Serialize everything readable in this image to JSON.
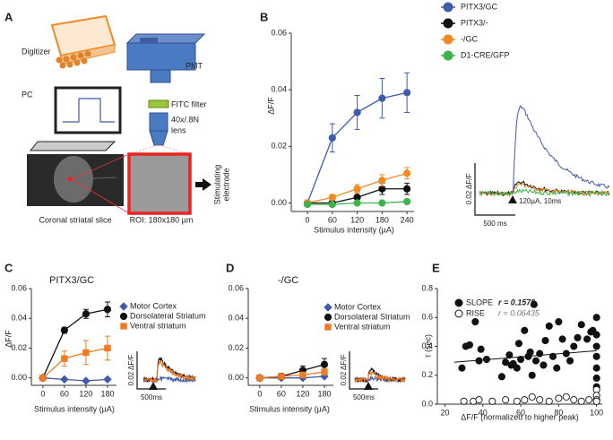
{
  "figure": {
    "panel_labels": [
      "A",
      "B",
      "C",
      "D",
      "E"
    ],
    "diagram": {
      "digitizer": "Digitizer",
      "pmt": "PMT",
      "pc": "PC",
      "filter": "FITC filter",
      "lens": [
        "40x/.8N",
        "lens"
      ],
      "electrode": [
        "Stimulating",
        "electrode"
      ],
      "slice": "Coronal striatal slice",
      "roi": "ROI: 180x180 µm"
    }
  },
  "chart_data": [
    {
      "type": "line",
      "x": [
        0,
        60,
        120,
        180,
        240
      ],
      "xlim": [
        -39,
        257
      ],
      "xticks": [
        0,
        60,
        120,
        180,
        240
      ],
      "ylim": [
        -0.003,
        0.06
      ],
      "yticks": [
        {
          "value": 0,
          "label": "0.00"
        },
        {
          "value": 0.02,
          "label": "0.02"
        },
        {
          "value": 0.04,
          "label": "0.04"
        },
        {
          "value": 0.06,
          "label": "0.06"
        }
      ],
      "xlabel": "Stimulus intensity (µA)",
      "ylabel": "ΔF/F",
      "scale_labels": [
        "0.02 ΔF/F",
        "500 ms",
        "120µA, 10ms"
      ],
      "series": [
        {
          "name": "PITX3/GC",
          "color": "#3f5bab",
          "marker": "circle",
          "values": [
            0,
            0.023,
            0.032,
            0.037,
            0.039
          ],
          "errors": [
            0,
            0.005,
            0.006,
            0.007,
            0.007
          ]
        },
        {
          "name": "PITX3/-",
          "color": "#111111",
          "marker": "circle",
          "values": [
            0,
            0,
            0.002,
            0.005,
            0.005
          ],
          "errors": [
            0,
            0.001,
            0.002,
            0.002,
            0.002
          ]
        },
        {
          "name": "-/GC",
          "color": "#f08a24",
          "marker": "circle",
          "values": [
            0,
            0.002,
            0.005,
            0.008,
            0.0105
          ],
          "errors": [
            0.001,
            0.001,
            0.0015,
            0.002,
            0.002
          ]
        },
        {
          "name": "D1-CRE/GFP",
          "color": "#3cb44b",
          "marker": "circle",
          "values": [
            -0.0005,
            -0.0005,
            0,
            0,
            0.0005
          ],
          "errors": [
            0.0005,
            0.0005,
            0.0005,
            0.0005,
            0.0005
          ]
        }
      ]
    },
    {
      "type": "line",
      "title": "PITX3/GC",
      "x": [
        0,
        60,
        120,
        180
      ],
      "xlim": [
        -32,
        205
      ],
      "xticks": [
        0,
        60,
        120,
        180
      ],
      "ylim": [
        -0.005,
        0.06
      ],
      "yticks": [
        {
          "value": 0,
          "label": "0.00"
        },
        {
          "value": 0.02,
          "label": "0.02"
        },
        {
          "value": 0.04,
          "label": "0.04"
        },
        {
          "value": 0.06,
          "label": "0.06"
        }
      ],
      "xlabel": "Stimulus intensity (µA)",
      "ylabel": "ΔF/F",
      "scale_labels": [
        "0.02 ΔF/F",
        "500ms"
      ],
      "series": [
        {
          "name": "Motor Cortex",
          "color": "#3f5bab",
          "marker": "diamond",
          "values": [
            0,
            -0.001,
            -0.002,
            -0.001
          ],
          "errors": [
            0,
            0.0005,
            0.0005,
            0.0005
          ]
        },
        {
          "name": "Dorsolateral Striatum",
          "color": "#111111",
          "marker": "circle",
          "values": [
            0,
            0.032,
            0.043,
            0.046
          ],
          "errors": [
            0,
            0.002,
            0.003,
            0.005
          ]
        },
        {
          "name": "Ventral striatum",
          "color": "#f07b24",
          "marker": "square",
          "values": [
            0,
            0.013,
            0.017,
            0.02
          ],
          "errors": [
            0,
            0.005,
            0.008,
            0.008
          ]
        }
      ]
    },
    {
      "type": "line",
      "title": "-/GC",
      "x": [
        0,
        60,
        120,
        180
      ],
      "xlim": [
        -32,
        205
      ],
      "xticks": [
        0,
        60,
        120,
        180
      ],
      "ylim": [
        -0.005,
        0.06
      ],
      "yticks": [
        {
          "value": 0,
          "label": "0.00"
        },
        {
          "value": 0.02,
          "label": "0.02"
        },
        {
          "value": 0.04,
          "label": "0.04"
        },
        {
          "value": 0.06,
          "label": "0.06"
        }
      ],
      "xlabel": "Stimulus intensity (µA)",
      "scale_labels": [
        "0.02 ΔF/F",
        "500ms"
      ],
      "series": [
        {
          "name": "Motor Cortex",
          "color": "#3f5bab",
          "marker": "diamond",
          "values": [
            0,
            0,
            0,
            0.001
          ],
          "errors": [
            0,
            0.0005,
            0.0005,
            0.0005
          ]
        },
        {
          "name": "Dorsolateral Striatum",
          "color": "#111111",
          "marker": "circle",
          "values": [
            0,
            0.001,
            0.005,
            0.009
          ],
          "errors": [
            0,
            0.002,
            0.003,
            0.004
          ]
        },
        {
          "name": "Ventral striatum",
          "color": "#f07b24",
          "marker": "square",
          "values": [
            0,
            0.001,
            0.002,
            0.004
          ],
          "errors": [
            0,
            0.001,
            0.001,
            0.002
          ]
        }
      ]
    },
    {
      "type": "scatter",
      "xlim": [
        16,
        103
      ],
      "xticks": [
        20,
        40,
        60,
        80,
        100
      ],
      "ylim": [
        0,
        0.8
      ],
      "yticks": [
        {
          "value": 0,
          "label": "0.0"
        },
        0.2,
        0.4,
        0.6,
        0.8
      ],
      "xlabel": "ΔF/F (normalized to higher peak)",
      "ylabel": "τ (sec)",
      "trendline": {
        "x": [
          25,
          100
        ],
        "y": [
          0.29,
          0.37
        ]
      },
      "series": [
        {
          "name": "SLOPE",
          "r_label": "r = 0.1570",
          "color": "#111111",
          "filled": true,
          "x": [
            29,
            31,
            33,
            36,
            38,
            39,
            42,
            50,
            52,
            54,
            55,
            56,
            58,
            59,
            60,
            62,
            64,
            65,
            66,
            67,
            68,
            70,
            72,
            73,
            75,
            77,
            79,
            80,
            82,
            84,
            86,
            88,
            90,
            92,
            95,
            97,
            98,
            100,
            100,
            100,
            100,
            100,
            100,
            100
          ],
          "y": [
            0.25,
            0.4,
            0.41,
            0.57,
            0.3,
            0.38,
            0.31,
            0.19,
            0.29,
            0.34,
            0.27,
            0.28,
            0.25,
            0.42,
            0.31,
            0.51,
            0.33,
            0.36,
            0.2,
            0.69,
            0.3,
            0.35,
            0.27,
            0.44,
            0.54,
            0.33,
            0.25,
            0.57,
            0.45,
            0.35,
            0.3,
            0.4,
            0.46,
            0.55,
            0.45,
            0.5,
            0.51,
            0.6,
            0.48,
            0.4,
            0.33,
            0.25,
            0.18,
            0.12
          ]
        },
        {
          "name": "RISE",
          "r_label": "r = 0.06435",
          "color": "#111111",
          "filled": false,
          "x": [
            30,
            35,
            38,
            45,
            52,
            58,
            62,
            66,
            70,
            75,
            80,
            84,
            88,
            92,
            96,
            100,
            100,
            100,
            100
          ],
          "y": [
            0.02,
            0.02,
            0.03,
            0.02,
            0.03,
            0.02,
            0.03,
            0.05,
            0.03,
            0.02,
            0.04,
            0.05,
            0.03,
            0.02,
            0.03,
            0.1,
            0.06,
            0.03,
            0.02
          ]
        }
      ]
    }
  ]
}
